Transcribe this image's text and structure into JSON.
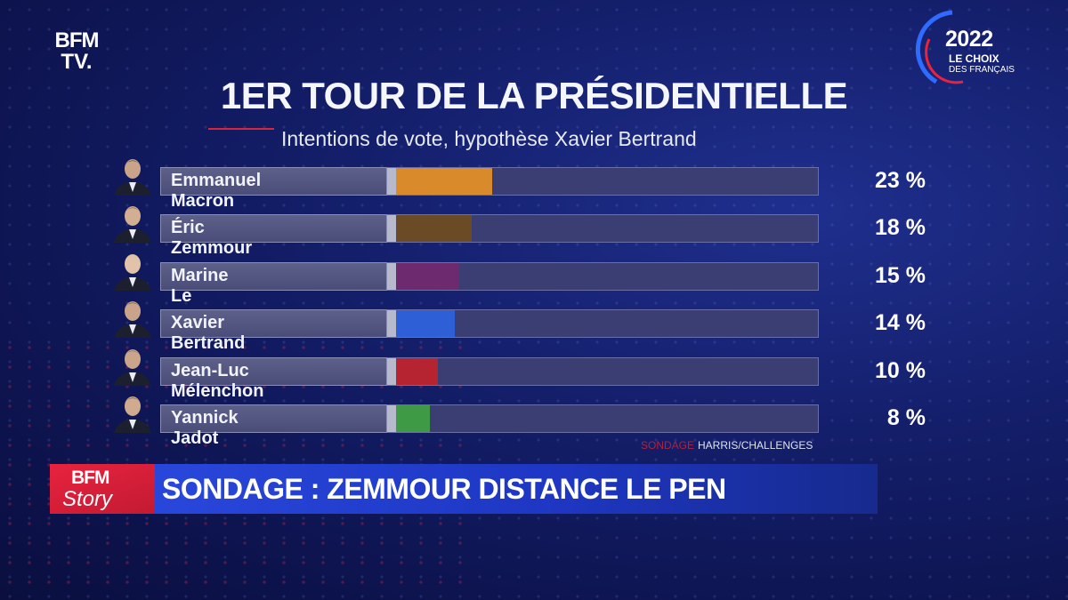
{
  "channel": {
    "logo_line1": "BFM",
    "logo_line2": "TV."
  },
  "badge": {
    "year": "2022",
    "line1": "LE CHOIX",
    "line2": "DES FRANÇAIS"
  },
  "colors": {
    "accent_red": "#d9253c",
    "banner_blue": "#2b4be0"
  },
  "chart_data": {
    "type": "bar",
    "title": "1ER TOUR DE LA PRÉSIDENTIELLE",
    "subtitle": "Intentions de vote, hypothèse Xavier Bertrand",
    "categories": [
      "Emmanuel Macron",
      "Éric Zemmour",
      "Marine Le Pen",
      "Xavier Bertrand",
      "Jean-Luc Mélenchon",
      "Yannick Jadot"
    ],
    "values": [
      23,
      18,
      15,
      14,
      10,
      8
    ],
    "value_labels": [
      "23 %",
      "18 %",
      "15 %",
      "14 %",
      "10 %",
      "8 %"
    ],
    "bar_colors": [
      "#d98a2a",
      "#6b4a26",
      "#6e2a6e",
      "#2f5fd6",
      "#b52430",
      "#3f9a45"
    ],
    "xlim": [
      0,
      100
    ],
    "source_label": "SONDAGE",
    "source": "HARRIS/CHALLENGES"
  },
  "story": {
    "logo_line1": "BFM",
    "logo_line2": "Story"
  },
  "headline": "SONDAGE : ZEMMOUR DISTANCE LE PEN"
}
